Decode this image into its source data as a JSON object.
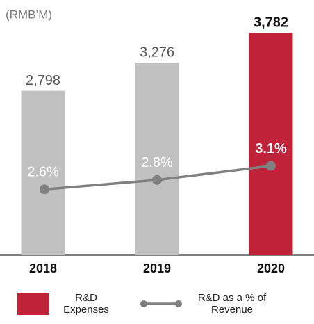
{
  "chart_data": {
    "type": "bar_line",
    "subtitle": "(RMB’M)",
    "categories": [
      "2018",
      "2019",
      "2020"
    ],
    "series": [
      {
        "name": "R&D Expenses",
        "type": "bar",
        "color": "#c0c0c0",
        "colors": [
          "#c0c0c0",
          "#c0c0c0",
          "#c0223a"
        ],
        "values": [
          2798,
          3276,
          3782
        ],
        "value_labels": [
          "2,798",
          "3,276",
          "3,782"
        ]
      },
      {
        "name": "R&D as a % of Revenue",
        "type": "line",
        "axis": "y2",
        "color": "#808080",
        "values": [
          2.6,
          2.8,
          3.1
        ],
        "value_labels": [
          "2.6%",
          "2.8%",
          "3.1%"
        ]
      }
    ],
    "ylim": [
      0,
      4000
    ],
    "y2lim": [
      1.2,
      6.2
    ]
  }
}
